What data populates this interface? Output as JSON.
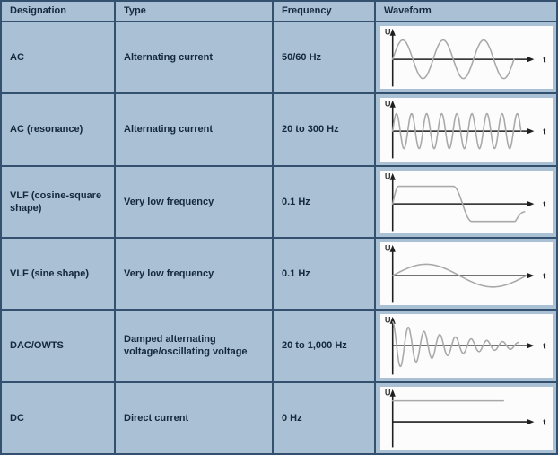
{
  "colors": {
    "cell_bg": "#a9c0d5",
    "border": "#33506e",
    "panel_bg": "#fcfcfc",
    "text": "#15283b",
    "wave": "#a9a9a9",
    "axis": "#1f1f1f",
    "axis_label": "#3a3a3a"
  },
  "table": {
    "columns": [
      "Designation",
      "Type",
      "Frequency",
      "Waveform"
    ],
    "rows": [
      {
        "designation": "AC",
        "type": "Alternating current",
        "frequency": "50/60 Hz",
        "waveform": {
          "kind": "sine",
          "cycles": 3,
          "amplitude": 22,
          "extent": 138,
          "y_axis_label": "U",
          "x_axis_label": "t",
          "description": "sine wave, 3 cycles"
        }
      },
      {
        "designation": "AC (resonance)",
        "type": "Alternating current",
        "frequency": "20 to 300 Hz",
        "waveform": {
          "kind": "sine",
          "cycles": 8.5,
          "amplitude": 20,
          "extent": 146,
          "y_axis_label": "U",
          "x_axis_label": "t",
          "description": "sine wave, high frequency"
        }
      },
      {
        "designation": "VLF (cosine-square shape)",
        "type": "Very low frequency",
        "frequency": "0.1 Hz",
        "waveform": {
          "kind": "cosine-square",
          "cycles": 1,
          "amplitude": 20,
          "extent": 150,
          "y_axis_label": "U",
          "x_axis_label": "t",
          "description": "square wave with smooth cosine transitions"
        }
      },
      {
        "designation": "VLF (sine shape)",
        "type": "Very low frequency",
        "frequency": "0.1 Hz",
        "waveform": {
          "kind": "sine",
          "cycles": 1,
          "amplitude": 13,
          "extent": 152,
          "y_axis_label": "U",
          "x_axis_label": "t",
          "description": "slow sine wave, one cycle"
        }
      },
      {
        "designation": "DAC/OWTS",
        "type": "Damped alternating voltage/oscillating voltage",
        "frequency": "20 to 1,000 Hz",
        "waveform": {
          "kind": "damped",
          "cycles": 8,
          "amplitude": 27,
          "decay": 2,
          "extent": 143,
          "y_axis_label": "U",
          "x_axis_label": "t",
          "description": "damped oscillation, decaying envelope"
        }
      },
      {
        "designation": "DC",
        "type": "Direct current",
        "frequency": "0 Hz",
        "waveform": {
          "kind": "dc",
          "cycles": 0,
          "amplitude": 24,
          "extent": 126,
          "y_axis_label": "U",
          "x_axis_label": "t",
          "description": "constant level above time axis"
        }
      }
    ]
  }
}
